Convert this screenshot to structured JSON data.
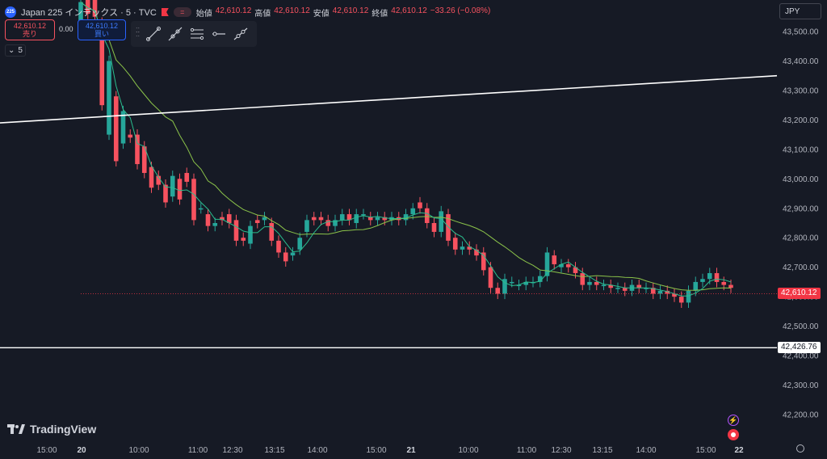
{
  "header": {
    "symbol_badge": "225",
    "title": "Japan 225 インデックス · 5 · TVC",
    "ohlc": {
      "open_label": "始値",
      "open": "42,610.12",
      "high_label": "高値",
      "high": "42,610.12",
      "low_label": "安値",
      "low": "42,610.12",
      "close_label": "終値",
      "close": "42,610.12",
      "change": "−33.26 (−0.08%)"
    }
  },
  "trade": {
    "sell_price": "42,610.12",
    "sell_label": "売り",
    "spread": "0.00",
    "buy_price": "42,610.12",
    "buy_label": "買い"
  },
  "indicators": {
    "collapse_count": "5"
  },
  "currency": "JPY",
  "brand": {
    "name": "TradingView"
  },
  "colors": {
    "background": "#161a25",
    "up": "#26a69a",
    "down": "#f7525f",
    "ma_fast": "#2bbd8e",
    "ma_slow": "#8bc34a",
    "trendline": "#ffffff"
  },
  "icons": {
    "tools": [
      "trend-line-icon",
      "ray-icon",
      "parallel-channel-icon",
      "horizontal-ray-icon",
      "extended-line-icon"
    ],
    "events": [
      "lightning-event-icon",
      "record-event-icon"
    ],
    "settings": "gear-icon"
  },
  "chart_data": {
    "type": "candlestick",
    "currency": "JPY",
    "ylim": [
      42150,
      43560
    ],
    "y_ticks": [
      43500,
      43400,
      43300,
      43200,
      43100,
      43000,
      42900,
      42800,
      42700,
      42600,
      42500,
      42400,
      42300,
      42200
    ],
    "y_tick_labels": [
      "43,500.00",
      "43,400.00",
      "43,300.00",
      "43,200.00",
      "43,100.00",
      "43,000.00",
      "42,900.00",
      "42,800.00",
      "42,700.00",
      "42,600.00",
      "42,500.00",
      "42,400.00",
      "42,300.00",
      "42,200.00"
    ],
    "x_tick_labels": [
      "15:00",
      "20",
      "10:00",
      "11:00",
      "12:30",
      "13:15",
      "14:00",
      "15:00",
      "21",
      "10:00",
      "11:00",
      "12:30",
      "13:15",
      "14:00",
      "15:00",
      "22"
    ],
    "last_price": 42610.12,
    "last_price_label": "42,610.12",
    "horizontal_line": 42426.76,
    "horizontal_line_label": "42,426.76",
    "trend_line": {
      "start": 43190,
      "end": 43350
    },
    "grid": false,
    "candle_rise": [
      [
        43500,
        43600
      ],
      [
        43620,
        43560
      ],
      [
        43650,
        43550
      ],
      [
        43530,
        43250
      ],
      [
        43150,
        43400
      ],
      [
        43280,
        43060
      ],
      [
        43120,
        43230
      ],
      [
        43150,
        43140
      ],
      [
        43150,
        43050
      ],
      [
        43110,
        43020
      ],
      [
        43040,
        42970
      ],
      [
        43010,
        42980
      ],
      [
        42980,
        42920
      ],
      [
        42940,
        43010
      ],
      [
        43000,
        42930
      ],
      [
        43020,
        42990
      ],
      [
        43000,
        42860
      ],
      [
        42900,
        42900
      ],
      [
        42880,
        42840
      ],
      [
        42840,
        42850
      ],
      [
        42870,
        42860
      ],
      [
        42880,
        42850
      ],
      [
        42860,
        42790
      ],
      [
        42800,
        42790
      ],
      [
        42780,
        42840
      ],
      [
        42860,
        42850
      ],
      [
        42860,
        42870
      ],
      [
        42850,
        42790
      ],
      [
        42790,
        42750
      ],
      [
        42750,
        42720
      ],
      [
        42740,
        42750
      ],
      [
        42760,
        42800
      ],
      [
        42820,
        42860
      ],
      [
        42870,
        42860
      ],
      [
        42870,
        42860
      ],
      [
        42860,
        42840
      ],
      [
        42840,
        42860
      ],
      [
        42860,
        42880
      ],
      [
        42880,
        42860
      ],
      [
        42850,
        42880
      ],
      [
        42880,
        42880
      ],
      [
        42870,
        42860
      ],
      [
        42860,
        42870
      ],
      [
        42870,
        42860
      ],
      [
        42860,
        42870
      ],
      [
        42870,
        42860
      ],
      [
        42860,
        42880
      ],
      [
        42880,
        42900
      ],
      [
        42920,
        42900
      ],
      [
        42900,
        42850
      ],
      [
        42850,
        42820
      ],
      [
        42820,
        42890
      ],
      [
        42880,
        42790
      ],
      [
        42800,
        42760
      ],
      [
        42760,
        42770
      ],
      [
        42770,
        42760
      ],
      [
        42760,
        42740
      ],
      [
        42750,
        42690
      ],
      [
        42700,
        42630
      ],
      [
        42630,
        42610
      ],
      [
        42610,
        42660
      ],
      [
        42650,
        42650
      ],
      [
        42640,
        42640
      ],
      [
        42640,
        42650
      ],
      [
        42650,
        42650
      ],
      [
        42650,
        42670
      ],
      [
        42670,
        42750
      ],
      [
        42740,
        42710
      ],
      [
        42700,
        42710
      ],
      [
        42710,
        42700
      ],
      [
        42700,
        42680
      ],
      [
        42680,
        42640
      ],
      [
        42640,
        42650
      ],
      [
        42650,
        42640
      ],
      [
        42640,
        42640
      ],
      [
        42640,
        42630
      ],
      [
        42630,
        42630
      ],
      [
        42630,
        42620
      ],
      [
        42620,
        42640
      ],
      [
        42640,
        42630
      ],
      [
        42630,
        42630
      ],
      [
        42630,
        42610
      ],
      [
        42610,
        42620
      ],
      [
        42620,
        42610
      ],
      [
        42610,
        42600
      ],
      [
        42600,
        42580
      ],
      [
        42580,
        42620
      ],
      [
        42620,
        42650
      ],
      [
        42650,
        42660
      ],
      [
        42660,
        42680
      ],
      [
        42680,
        42650
      ],
      [
        42650,
        42640
      ],
      [
        42640,
        42630
      ]
    ]
  }
}
